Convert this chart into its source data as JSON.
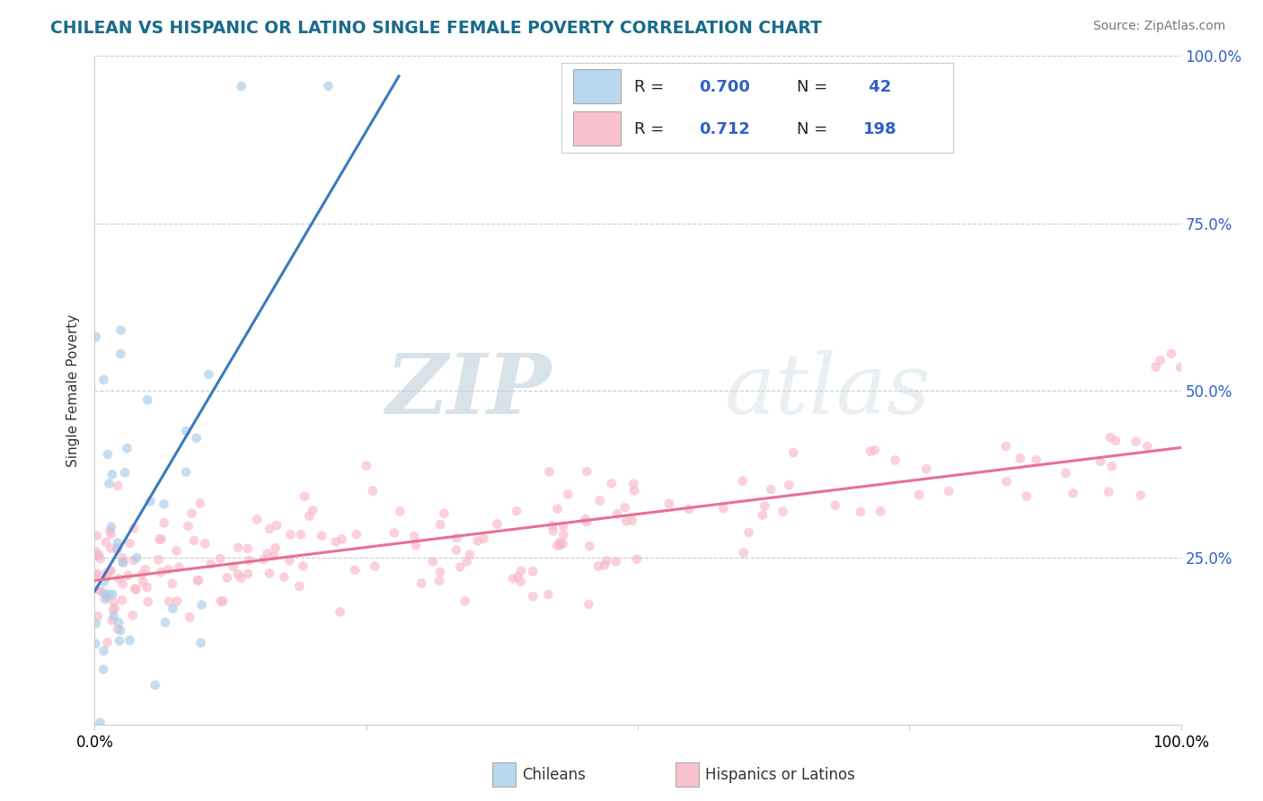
{
  "title": "CHILEAN VS HISPANIC OR LATINO SINGLE FEMALE POVERTY CORRELATION CHART",
  "title_color": "#1a6b8a",
  "source_text": "Source: ZipAtlas.com",
  "ylabel": "Single Female Poverty",
  "watermark_zip": "ZIP",
  "watermark_atlas": "atlas",
  "legend_label1": "Chileans",
  "legend_label2": "Hispanics or Latinos",
  "R1": "0.700",
  "N1": " 42",
  "R2": "0.712",
  "N2": "198",
  "blue_scatter": "#a8cce8",
  "blue_line": "#3a7abf",
  "pink_scatter": "#f9b8c8",
  "pink_line": "#e87090",
  "blue_legend_fill": "#b8d8f0",
  "pink_legend_fill": "#f9c0d0",
  "legend_text_color": "#3060c8",
  "label_color": "#3060c8",
  "scatter_alpha": 0.65,
  "scatter_size": 60,
  "xlim": [
    0.0,
    1.0
  ],
  "ylim": [
    0.0,
    1.0
  ],
  "xtick_labels_show": [
    "0.0%",
    "100.0%"
  ],
  "xtick_positions_show": [
    0.0,
    1.0
  ],
  "ytick_right_labels": [
    "25.0%",
    "50.0%",
    "75.0%",
    "100.0%"
  ],
  "ytick_positions": [
    0.25,
    0.5,
    0.75,
    1.0
  ],
  "grid_color": "#cccccc",
  "background_color": "#ffffff",
  "source_color": "#777777"
}
